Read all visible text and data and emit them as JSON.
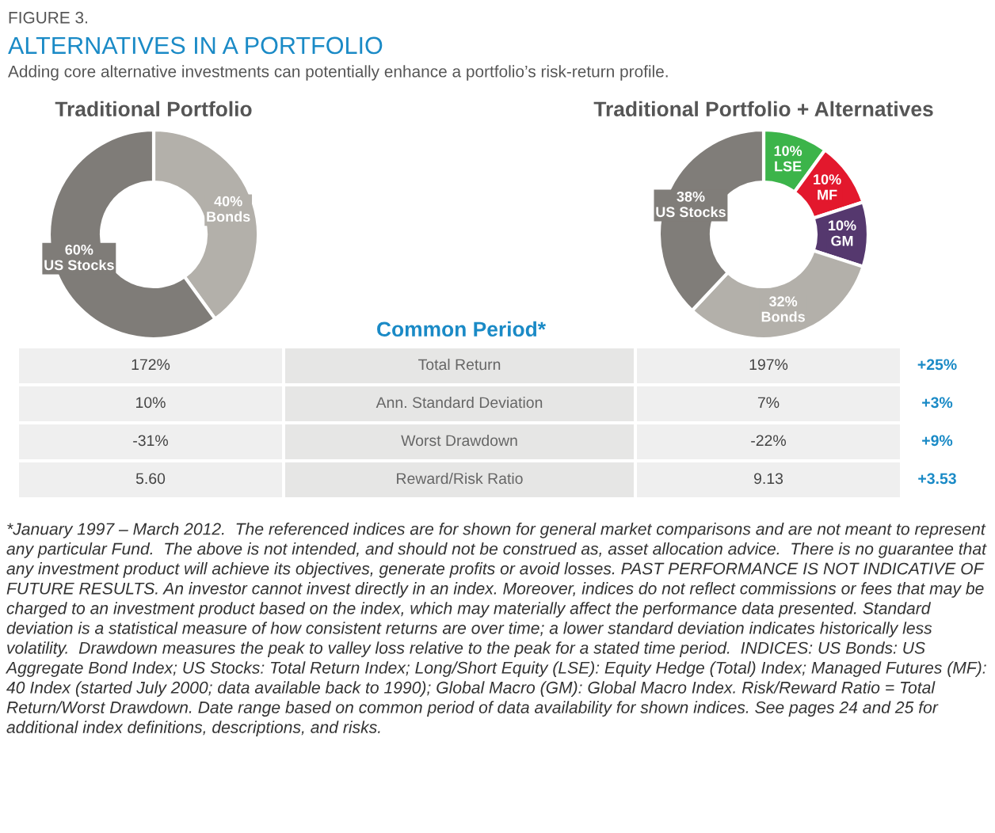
{
  "chart_data": [
    {
      "type": "other",
      "title": "ALTERNATIVES IN A PORTFOLIO",
      "subtitle": "Adding core alternative investments can potentially enhance a portfolio’s risk-return profile.",
      "annotations": [
        "FIGURE 3."
      ]
    },
    {
      "type": "donut",
      "title": "Traditional Portfolio",
      "categories": [
        "Bonds",
        "US Stocks"
      ],
      "values": [
        40,
        60
      ],
      "value_labels": [
        "40%",
        "60%"
      ],
      "colors": [
        "#b3b0aa",
        "#7f7c78"
      ]
    },
    {
      "type": "donut",
      "title": "Traditional Portfolio + Alternatives",
      "categories": [
        "LSE",
        "MF",
        "GM",
        "Bonds",
        "US Stocks"
      ],
      "values": [
        10,
        10,
        10,
        32,
        38
      ],
      "value_labels": [
        "10%",
        "10%",
        "10%",
        "32%",
        "38%"
      ],
      "colors": [
        "#3cb44a",
        "#e3182d",
        "#55386e",
        "#b3b0aa",
        "#807d79"
      ]
    },
    {
      "type": "other",
      "title": "Common Period*",
      "cell_labels": [
        [
          "172%",
          "Total Return",
          "197%",
          "+25%"
        ],
        [
          "10%",
          "Ann. Standard Deviation",
          "7%",
          "+3%"
        ],
        [
          "-31%",
          "Worst Drawdown",
          "-22%",
          "+9%"
        ],
        [
          "5.60",
          "Reward/Risk Ratio",
          "9.13",
          "+3.53"
        ]
      ],
      "annotations": [
        "*January 1997 – March 2012.  The referenced indices are for shown for general market comparisons and are not meant to represent any particular Fund.  The above is not intended, and should not be construed as, asset allocation advice.  There is no guarantee that any investment product will achieve its objectives, generate profits or avoid losses. PAST PERFORMANCE IS NOT INDICATIVE OF FUTURE RESULTS. An investor cannot invest directly in an index. Moreover, indices do not reflect commissions or fees that may be charged to an investment product based on the index, which may materially affect the performance data presented. Standard deviation is a statistical measure of how consistent returns are over time; a lower standard deviation indicates historically less volatility.  Drawdown measures the peak to valley loss relative to the peak for a stated time period.  INDICES: US Bonds: US Aggregate Bond Index; US Stocks: Total Return Index; Long/Short Equity (LSE): Equity Hedge (Total) Index; Managed Futures (MF): 40 Index (started July 2000; data available back to 1990); Global Macro (GM): Global Macro Index. Risk/Reward Ratio = Total Return/Worst Drawdown. Date range based on common period of data availability for shown indices. See pages 24 and 25 for additional index definitions, descriptions, and risks."
      ]
    }
  ]
}
